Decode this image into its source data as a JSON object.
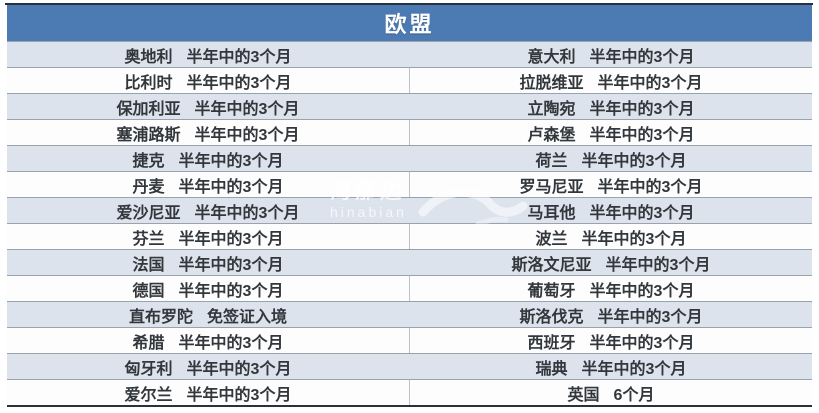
{
  "chart_data": {
    "type": "table",
    "title": "欧盟",
    "duration_note_default": "半年中的3个月",
    "rows": [
      {
        "left": {
          "country": "奥地利",
          "duration": "半年中的3个月"
        },
        "right": {
          "country": "意大利",
          "duration": "半年中的3个月"
        }
      },
      {
        "left": {
          "country": "比利时",
          "duration": "半年中的3个月"
        },
        "right": {
          "country": "拉脱维亚",
          "duration": "半年中的3个月"
        }
      },
      {
        "left": {
          "country": "保加利亚",
          "duration": "半年中的3个月"
        },
        "right": {
          "country": "立陶宛",
          "duration": "半年中的3个月"
        }
      },
      {
        "left": {
          "country": "塞浦路斯",
          "duration": "半年中的3个月"
        },
        "right": {
          "country": "卢森堡",
          "duration": "半年中的3个月"
        }
      },
      {
        "left": {
          "country": "捷克",
          "duration": "半年中的3个月"
        },
        "right": {
          "country": "荷兰",
          "duration": "半年中的3个月"
        }
      },
      {
        "left": {
          "country": "丹麦",
          "duration": "半年中的3个月"
        },
        "right": {
          "country": "罗马尼亚",
          "duration": "半年中的3个月"
        }
      },
      {
        "left": {
          "country": "爱沙尼亚",
          "duration": "半年中的3个月"
        },
        "right": {
          "country": "马耳他",
          "duration": "半年中的3个月"
        }
      },
      {
        "left": {
          "country": "芬兰",
          "duration": "半年中的3个月"
        },
        "right": {
          "country": "波兰",
          "duration": "半年中的3个月"
        }
      },
      {
        "left": {
          "country": "法国",
          "duration": "半年中的3个月"
        },
        "right": {
          "country": "斯洛文尼亚",
          "duration": "半年中的3个月"
        }
      },
      {
        "left": {
          "country": "德国",
          "duration": "半年中的3个月"
        },
        "right": {
          "country": "葡萄牙",
          "duration": "半年中的3个月"
        }
      },
      {
        "left": {
          "country": "直布罗陀",
          "duration": "免签证入境"
        },
        "right": {
          "country": "斯洛伐克",
          "duration": "半年中的3个月"
        }
      },
      {
        "left": {
          "country": "希腊",
          "duration": "半年中的3个月"
        },
        "right": {
          "country": "西班牙",
          "duration": "半年中的3个月"
        }
      },
      {
        "left": {
          "country": "匈牙利",
          "duration": "半年中的3个月"
        },
        "right": {
          "country": "瑞典",
          "duration": "半年中的3个月"
        }
      },
      {
        "left": {
          "country": "爱尔兰",
          "duration": "半年中的3个月"
        },
        "right": {
          "country": "英国",
          "duration": "6个月"
        }
      }
    ]
  },
  "watermark": {
    "line1": "海那边",
    "line2": "hinabian"
  },
  "colors": {
    "header_bg": "#4c7bb4",
    "row_shaded": "#dde3ec",
    "row_plain": "#fdfdfe",
    "grid_line": "#9aa3ac",
    "outer_border": "#27323d",
    "cell_text": "#32373c"
  }
}
